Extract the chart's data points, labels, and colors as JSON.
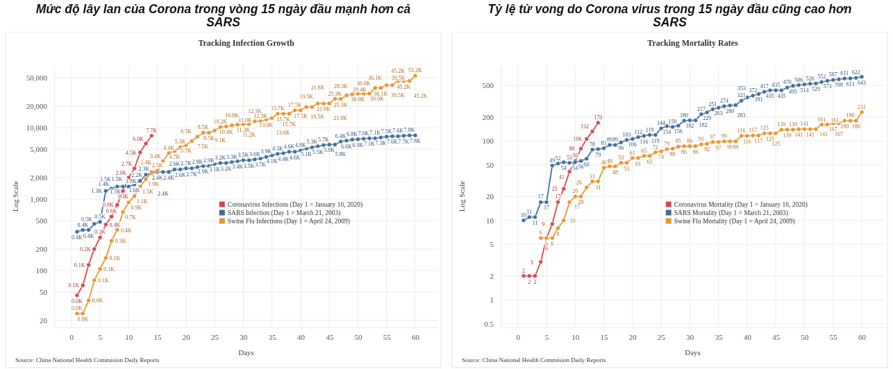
{
  "chart_data": [
    {
      "type": "line",
      "title": "Mức độ lây lan của Corona trong vòng 15 ngày đầu mạnh hơn cả SARS",
      "subtitle": "Tracking Infection Growth",
      "xlabel": "Days",
      "ylabel": "Log Scale",
      "log": "y",
      "grid": true,
      "legend": "right",
      "marker": "circle",
      "line_style": "solid",
      "xlim": [
        -3,
        64
      ],
      "xticks": [
        0,
        5,
        10,
        15,
        20,
        25,
        30,
        35,
        40,
        45,
        50,
        55,
        60
      ],
      "ylim": [
        16,
        75000
      ],
      "yticks": [
        20,
        50,
        100,
        200,
        500,
        {
          "value": 1000,
          "label": "1,000"
        },
        {
          "value": 2000,
          "label": "2,000"
        },
        {
          "value": 5000,
          "label": "5,000"
        },
        {
          "value": 10000,
          "label": "10,000"
        },
        {
          "value": 20000,
          "label": "20,000"
        },
        {
          "value": 50000,
          "label": "50,000"
        }
      ],
      "annotations": [
        "Source: China National Health Commision Daily Reports"
      ],
      "series": [
        {
          "name": "Coronavirus Infections (Day 1 = January 16, 2020)",
          "color": "#d6474f",
          "x": [
            1,
            2,
            3,
            4,
            5,
            6,
            7,
            8,
            9,
            10,
            11,
            12,
            13,
            14
          ],
          "values": [
            45,
            62,
            120,
            200,
            290,
            440,
            570,
            830,
            1300,
            2000,
            2700,
            4500,
            6000,
            7700
          ],
          "value_labels": [
            "0.0K",
            "0.1K",
            "0.1K",
            "0.2K",
            "0.3K",
            "0.4K",
            "0.6K",
            "0.8K",
            "1.3K",
            "2.0K",
            "2.7K",
            "4.5K",
            "6.0K",
            "7.7K"
          ]
        },
        {
          "name": "SARS Infection (Day 1 = March 21, 2003)",
          "color": "#3f6e9a",
          "x": [
            1,
            2,
            3,
            4,
            5,
            6,
            7,
            8,
            9,
            10,
            11,
            12,
            13,
            14,
            15,
            16,
            17,
            18,
            19,
            20,
            21,
            22,
            23,
            24,
            25,
            26,
            27,
            28,
            29,
            30,
            31,
            32,
            33,
            34,
            35,
            36,
            37,
            38,
            39,
            40,
            41,
            42,
            43,
            44,
            45,
            46,
            47,
            48,
            49,
            50,
            51,
            52,
            53,
            54,
            55,
            56,
            57,
            58,
            59,
            60
          ],
          "values": [
            350,
            370,
            370,
            450,
            480,
            1300,
            1400,
            1500,
            1500,
            1500,
            1600,
            1800,
            2200,
            2300,
            2400,
            2400,
            2400,
            2600,
            2600,
            2700,
            2700,
            2800,
            2900,
            2900,
            3100,
            3200,
            3200,
            3300,
            3400,
            3500,
            3500,
            3600,
            3700,
            3900,
            4100,
            4300,
            4400,
            4600,
            4600,
            4800,
            5100,
            5300,
            5500,
            5700,
            5800,
            5800,
            6400,
            6600,
            6800,
            6900,
            7000,
            7100,
            7100,
            7300,
            7500,
            7600,
            7600,
            7700,
            7800,
            7800
          ],
          "value_labels": [
            "0.4K",
            "0.4K",
            "0.4K",
            "0.5K",
            "0.5K",
            "1.3K",
            "1.4K",
            "1.5K",
            "1.5K",
            "1.5K",
            "1.6K",
            "1.8K",
            "2.2K",
            "2.3K",
            "2.4K",
            "2.4K",
            "2.4K",
            "2.6K",
            "2.6K",
            "2.7K",
            "2.7K",
            "2.8K",
            "2.9K",
            "2.9K",
            "3.1K",
            "3.2K",
            "3.2K",
            "3.3K",
            "3.4K",
            "3.5K",
            "3.5K",
            "3.6K",
            "3.7K",
            "3.9K",
            "4.1K",
            "4.3K",
            "4.4K",
            "4.6K",
            "4.6K",
            "4.8K",
            "5.1K",
            "5.3K",
            "5.5K",
            "5.7K",
            "5.8K",
            "5.8K",
            "6.4K",
            "6.6K",
            "6.8K",
            "6.9K",
            "7.0K",
            "7.1K",
            "7.1K",
            "7.3K",
            "7.5K",
            "7.6K",
            "7.6K",
            "7.7K",
            "7.8K",
            "7.8K"
          ]
        },
        {
          "name": "Swine Flu Infections (Day 1 = April 24, 2009)",
          "color": "#e8942f",
          "x": [
            1,
            2,
            3,
            4,
            5,
            6,
            7,
            8,
            9,
            10,
            11,
            12,
            13,
            14,
            15,
            16,
            17,
            18,
            19,
            20,
            21,
            22,
            23,
            24,
            25,
            26,
            27,
            28,
            29,
            30,
            31,
            32,
            33,
            34,
            35,
            36,
            37,
            38,
            39,
            40,
            41,
            42,
            43,
            44,
            45,
            46,
            47,
            48,
            49,
            50,
            51,
            52,
            53,
            54,
            55,
            56,
            57,
            58,
            59,
            60
          ],
          "values": [
            25,
            25,
            38,
            73,
            105,
            150,
            260,
            370,
            660,
            900,
            1100,
            1500,
            1900,
            2400,
            2500,
            3400,
            4400,
            4700,
            5300,
            5700,
            6500,
            7500,
            8500,
            8500,
            9100,
            10200,
            10400,
            10800,
            11000,
            11200,
            11200,
            12300,
            12300,
            13000,
            13600,
            15700,
            15700,
            15700,
            17500,
            17500,
            19500,
            19500,
            21800,
            21800,
            21800,
            25300,
            25300,
            28300,
            29400,
            30000,
            30000,
            30000,
            36100,
            36100,
            39500,
            39500,
            45200,
            45200,
            45200,
            53200
          ],
          "value_labels": [
            "0.0K",
            "0.0K",
            "0.0K",
            "0.1K",
            "0.1K",
            "0.1K",
            "0.3K",
            "0.4K",
            "0.7K",
            "0.9K",
            "1.1K",
            "1.5K",
            "1.9K",
            "2.4K",
            "2.5K",
            "3.4K",
            "4.4K",
            "4.7K",
            "5.3K",
            "5.7K",
            "6.5K",
            "7.5K",
            "8.5K",
            "8.5K",
            "9.1K",
            "10.2K",
            "10.4K",
            "10.8K",
            "11.0K",
            "11.2K",
            "11.2K",
            "12.3K",
            "12.3K",
            "13.0K",
            "13.6K",
            "15.7K",
            "15.7K",
            "15.7K",
            "17.5K",
            "17.5K",
            "19.5K",
            "19.5K",
            "21.8K",
            "21.8K",
            "21.8K",
            "25.3K",
            "25.3K",
            "28.3K",
            "29.4K",
            "30.0K",
            "30.0K",
            "30.0K",
            "36.1K",
            "36.1K",
            "39.5K",
            "39.5K",
            "45.2K",
            "45.2K",
            "45.2K",
            "53.2K"
          ]
        }
      ]
    },
    {
      "type": "line",
      "title": "Tỷ lệ tử vong do Corona virus trong 15 ngày đầu cũng cao hơn SARS",
      "subtitle": "Tracking Mortality Rates",
      "xlabel": "Days",
      "ylabel": "Log Scale",
      "log": "y",
      "grid": true,
      "legend": "right",
      "marker": "circle",
      "line_style": "solid",
      "data_labels": true,
      "xlim": [
        -3,
        64
      ],
      "xticks": [
        0,
        5,
        10,
        15,
        20,
        25,
        30,
        35,
        40,
        45,
        50,
        55,
        60
      ],
      "ylim": [
        0.45,
        900
      ],
      "yticks": [
        0.5,
        1,
        2,
        5,
        10,
        20,
        50,
        100,
        200,
        500
      ],
      "annotations": [
        "Source: China National Health Commision Daily Reports"
      ],
      "series": [
        {
          "name": "Coronavirus Mortality (Day 1 = January 16, 2020)",
          "color": "#d6474f",
          "x": [
            1,
            2,
            3,
            4,
            5,
            6,
            7,
            8,
            9,
            10,
            11,
            12,
            13,
            14
          ],
          "values": [
            2,
            2,
            2,
            3,
            6,
            9,
            17,
            25,
            41,
            56,
            80,
            106,
            132,
            170
          ]
        },
        {
          "name": "SARS Mortality  (Day 1 = March 21, 2003)",
          "color": "#3f6e9a",
          "x": [
            1,
            2,
            3,
            4,
            5,
            6,
            7,
            8,
            9,
            10,
            11,
            12,
            13,
            14,
            15,
            16,
            17,
            18,
            19,
            20,
            21,
            22,
            23,
            24,
            25,
            26,
            27,
            28,
            29,
            30,
            31,
            32,
            33,
            34,
            35,
            36,
            37,
            38,
            39,
            40,
            41,
            42,
            43,
            44,
            45,
            46,
            47,
            48,
            49,
            50,
            51,
            52,
            53,
            54,
            55,
            56,
            57,
            58,
            59,
            60
          ],
          "values": [
            10,
            11,
            11,
            17,
            17,
            49,
            52,
            54,
            53,
            54,
            56,
            60,
            78,
            79,
            81,
            89,
            89,
            96,
            103,
            106,
            112,
            116,
            119,
            119,
            144,
            154,
            150,
            156,
            180,
            182,
            182,
            217,
            229,
            251,
            263,
            274,
            280,
            283,
            321,
            353,
            372,
            391,
            417,
            435,
            435,
            435,
            470,
            495,
            506,
            514,
            526,
            529,
            552,
            573,
            587,
            598,
            611,
            613,
            622,
            643
          ]
        },
        {
          "name": "Swine Flu Mortality  (Day 1 = April 24, 2009)",
          "color": "#e8942f",
          "x": [
            4,
            5,
            6,
            7,
            8,
            9,
            10,
            11,
            12,
            13,
            14,
            15,
            16,
            17,
            18,
            19,
            20,
            21,
            22,
            23,
            24,
            25,
            26,
            27,
            28,
            29,
            30,
            31,
            32,
            33,
            34,
            35,
            36,
            37,
            38,
            39,
            40,
            41,
            42,
            43,
            44,
            45,
            46,
            47,
            48,
            49,
            50,
            51,
            52,
            53,
            54,
            55,
            56,
            57,
            58,
            59,
            60
          ],
          "values": [
            6,
            6,
            6,
            8,
            10,
            17,
            20,
            20,
            26,
            31,
            31,
            46,
            48,
            48,
            53,
            53,
            61,
            61,
            65,
            65,
            72,
            74,
            79,
            80,
            85,
            86,
            86,
            86,
            91,
            92,
            97,
            97,
            99,
            99,
            99,
            116,
            116,
            117,
            117,
            125,
            125,
            125,
            139,
            139,
            139,
            141,
            141,
            141,
            141,
            161,
            161,
            167,
            167,
            180,
            180,
            180,
            231
          ]
        }
      ]
    }
  ]
}
